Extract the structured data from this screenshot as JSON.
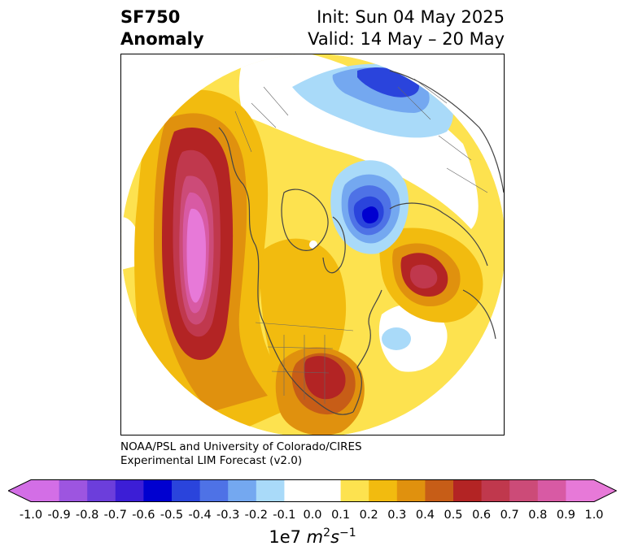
{
  "header": {
    "title_line1": "SF750",
    "title_line2": "Anomaly",
    "init_label": "Init: Sun 04 May 2025",
    "valid_label": "Valid: 14 May – 20 May"
  },
  "credit": {
    "line1": "NOAA/PSL and University of Colorado/CIRES",
    "line2": "Experimental LIM Forecast (v2.0)"
  },
  "colorbar": {
    "ticks": [
      "-1.0",
      "-0.9",
      "-0.8",
      "-0.7",
      "-0.6",
      "-0.5",
      "-0.4",
      "-0.3",
      "-0.2",
      "-0.1",
      "0.0",
      "0.1",
      "0.2",
      "0.3",
      "0.4",
      "0.5",
      "0.6",
      "0.7",
      "0.8",
      "0.9",
      "1.0"
    ],
    "colors": [
      "#d36ee6",
      "#9d55e0",
      "#6c3edb",
      "#3c1ed6",
      "#0000d0",
      "#2a44dc",
      "#4e72e6",
      "#74a8f0",
      "#a9daf9",
      "#ffffff",
      "#ffffff",
      "#fde24f",
      "#f2bb0f",
      "#e0910e",
      "#c75d17",
      "#b32424",
      "#c0384d",
      "#cc4b78",
      "#d85aa4",
      "#e779d8"
    ],
    "units_prefix": "1e7 ",
    "units_main": "m",
    "units_sup1": "2",
    "units_s": "s",
    "units_sup2": "−1"
  },
  "map": {
    "projection": "north-polar-stereographic",
    "variable": "750 hPa streamfunction anomaly"
  }
}
